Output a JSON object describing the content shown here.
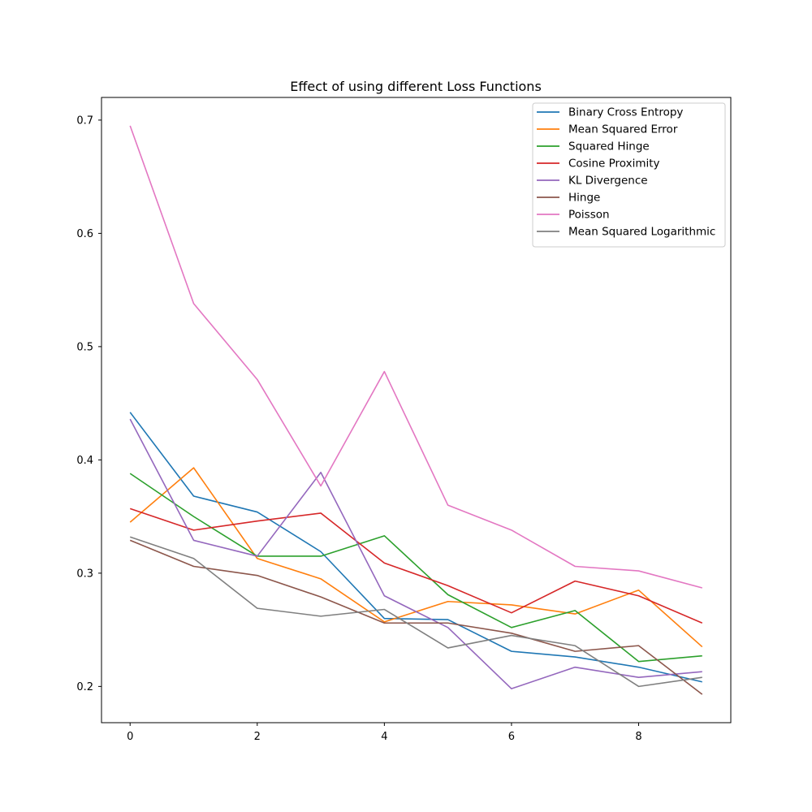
{
  "chart_data": {
    "type": "line",
    "title": "Effect of using different Loss Functions",
    "xlabel": "",
    "ylabel": "",
    "xlim": [
      -0.45,
      9.45
    ],
    "ylim": [
      0.168,
      0.72
    ],
    "x": [
      0,
      1,
      2,
      3,
      4,
      5,
      6,
      7,
      8,
      9
    ],
    "xticks": [
      0,
      2,
      4,
      6,
      8
    ],
    "xtick_labels": [
      "0",
      "2",
      "4",
      "6",
      "8"
    ],
    "yticks": [
      0.2,
      0.3,
      0.4,
      0.5,
      0.6,
      0.7
    ],
    "ytick_labels": [
      "0.2",
      "0.3",
      "0.4",
      "0.5",
      "0.6",
      "0.7"
    ],
    "grid": false,
    "legend_position": "top-right",
    "series": [
      {
        "name": "Binary Cross Entropy",
        "color": "#1f77b4",
        "values": [
          0.442,
          0.368,
          0.354,
          0.319,
          0.26,
          0.259,
          0.231,
          0.226,
          0.217,
          0.204
        ]
      },
      {
        "name": "Mean Squared Error",
        "color": "#ff7f0e",
        "values": [
          0.345,
          0.393,
          0.313,
          0.295,
          0.257,
          0.275,
          0.272,
          0.264,
          0.285,
          0.235
        ]
      },
      {
        "name": "Squared Hinge",
        "color": "#2ca02c",
        "values": [
          0.388,
          0.35,
          0.315,
          0.315,
          0.333,
          0.281,
          0.252,
          0.267,
          0.222,
          0.227
        ]
      },
      {
        "name": "Cosine Proximity",
        "color": "#d62728",
        "values": [
          0.357,
          0.338,
          0.346,
          0.353,
          0.309,
          0.289,
          0.265,
          0.293,
          0.28,
          0.256
        ]
      },
      {
        "name": "KL Divergence",
        "color": "#9467bd",
        "values": [
          0.436,
          0.329,
          0.315,
          0.389,
          0.28,
          0.252,
          0.198,
          0.217,
          0.208,
          0.213
        ]
      },
      {
        "name": "Hinge",
        "color": "#8c564b",
        "values": [
          0.329,
          0.306,
          0.298,
          0.279,
          0.256,
          0.256,
          0.247,
          0.231,
          0.236,
          0.193
        ]
      },
      {
        "name": "Poisson",
        "color": "#e377c2",
        "values": [
          0.695,
          0.538,
          0.471,
          0.377,
          0.478,
          0.36,
          0.338,
          0.306,
          0.302,
          0.287
        ]
      },
      {
        "name": "Mean Squared Logarithmic",
        "color": "#7f7f7f",
        "values": [
          0.332,
          0.313,
          0.269,
          0.262,
          0.268,
          0.234,
          0.245,
          0.236,
          0.2,
          0.208
        ]
      }
    ]
  }
}
